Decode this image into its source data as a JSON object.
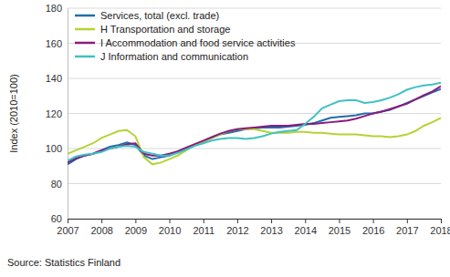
{
  "chart_data": {
    "type": "line",
    "y_label": "Index (2010=100)",
    "source": "Source: Statistics Finland",
    "x": [
      2007,
      2007.25,
      2007.5,
      2007.75,
      2008,
      2008.25,
      2008.5,
      2008.75,
      2009,
      2009.25,
      2009.5,
      2009.75,
      2010,
      2010.25,
      2010.5,
      2010.75,
      2011,
      2011.25,
      2011.5,
      2011.75,
      2012,
      2012.25,
      2012.5,
      2012.75,
      2013,
      2013.25,
      2013.5,
      2013.75,
      2014,
      2014.25,
      2014.5,
      2014.75,
      2015,
      2015.25,
      2015.5,
      2015.75,
      2016,
      2016.25,
      2016.5,
      2016.75,
      2017,
      2017.25,
      2017.5,
      2017.75,
      2018
    ],
    "series": [
      {
        "name": "Services, total (excl. trade)",
        "color": "#1f6fa8",
        "values": [
          91,
          94,
          96,
          97,
          99,
          101,
          102,
          103.5,
          102,
          96,
          94,
          95,
          96,
          98,
          100,
          102,
          104,
          106,
          108,
          109,
          110,
          111,
          111.5,
          112,
          112,
          112,
          112.5,
          113,
          113.5,
          114.5,
          116,
          117.5,
          118,
          118.5,
          119,
          120,
          120,
          121,
          122,
          124,
          126,
          128,
          130,
          132,
          134
        ]
      },
      {
        "name": "H Transportation and storage",
        "color": "#b5d334",
        "values": [
          97,
          99,
          101,
          103,
          106,
          108,
          110,
          110.5,
          107,
          95,
          91,
          92,
          94,
          96,
          99,
          102,
          104,
          106,
          108,
          110,
          111,
          111,
          111,
          110,
          109,
          109,
          109,
          109.5,
          109.5,
          109,
          109,
          108.5,
          108,
          108,
          108,
          107.5,
          107,
          107,
          106.5,
          107,
          108,
          110,
          113,
          115,
          117.5
        ]
      },
      {
        "name": "I Accommodation and food service activities",
        "color": "#8b1a7e",
        "values": [
          92,
          94.5,
          96,
          97,
          99,
          100,
          101,
          102.5,
          103,
          97,
          96,
          96,
          97,
          98.5,
          100.5,
          102.5,
          104.5,
          106.5,
          108.5,
          110,
          111,
          111.5,
          112,
          112.5,
          113,
          113,
          113,
          113.5,
          114,
          114,
          114.5,
          115,
          115.5,
          116,
          117,
          118.5,
          120,
          121,
          122.5,
          124,
          125.5,
          128,
          130.5,
          132.5,
          135.5
        ]
      },
      {
        "name": "J Information and communication",
        "color": "#3fc1c0",
        "values": [
          93,
          95.5,
          96.5,
          97,
          98,
          100,
          101,
          101.5,
          101,
          98,
          97,
          96,
          96,
          97.5,
          99.5,
          101.5,
          103,
          104.5,
          105.5,
          106,
          106,
          105.5,
          106,
          107,
          108.5,
          109.5,
          110,
          110.5,
          114,
          118,
          123,
          125,
          127,
          127.5,
          127.5,
          126,
          126.5,
          127.5,
          129,
          131,
          133.5,
          135,
          136,
          136.5,
          137.5
        ]
      }
    ],
    "xlim": [
      2007,
      2018
    ],
    "xticks": [
      2007,
      2008,
      2009,
      2010,
      2011,
      2012,
      2013,
      2014,
      2015,
      2016,
      2017,
      2018
    ],
    "ylim": [
      60,
      180
    ],
    "yticks": [
      60,
      80,
      100,
      120,
      140,
      160,
      180
    ],
    "grid": true,
    "legend": "upper left"
  }
}
